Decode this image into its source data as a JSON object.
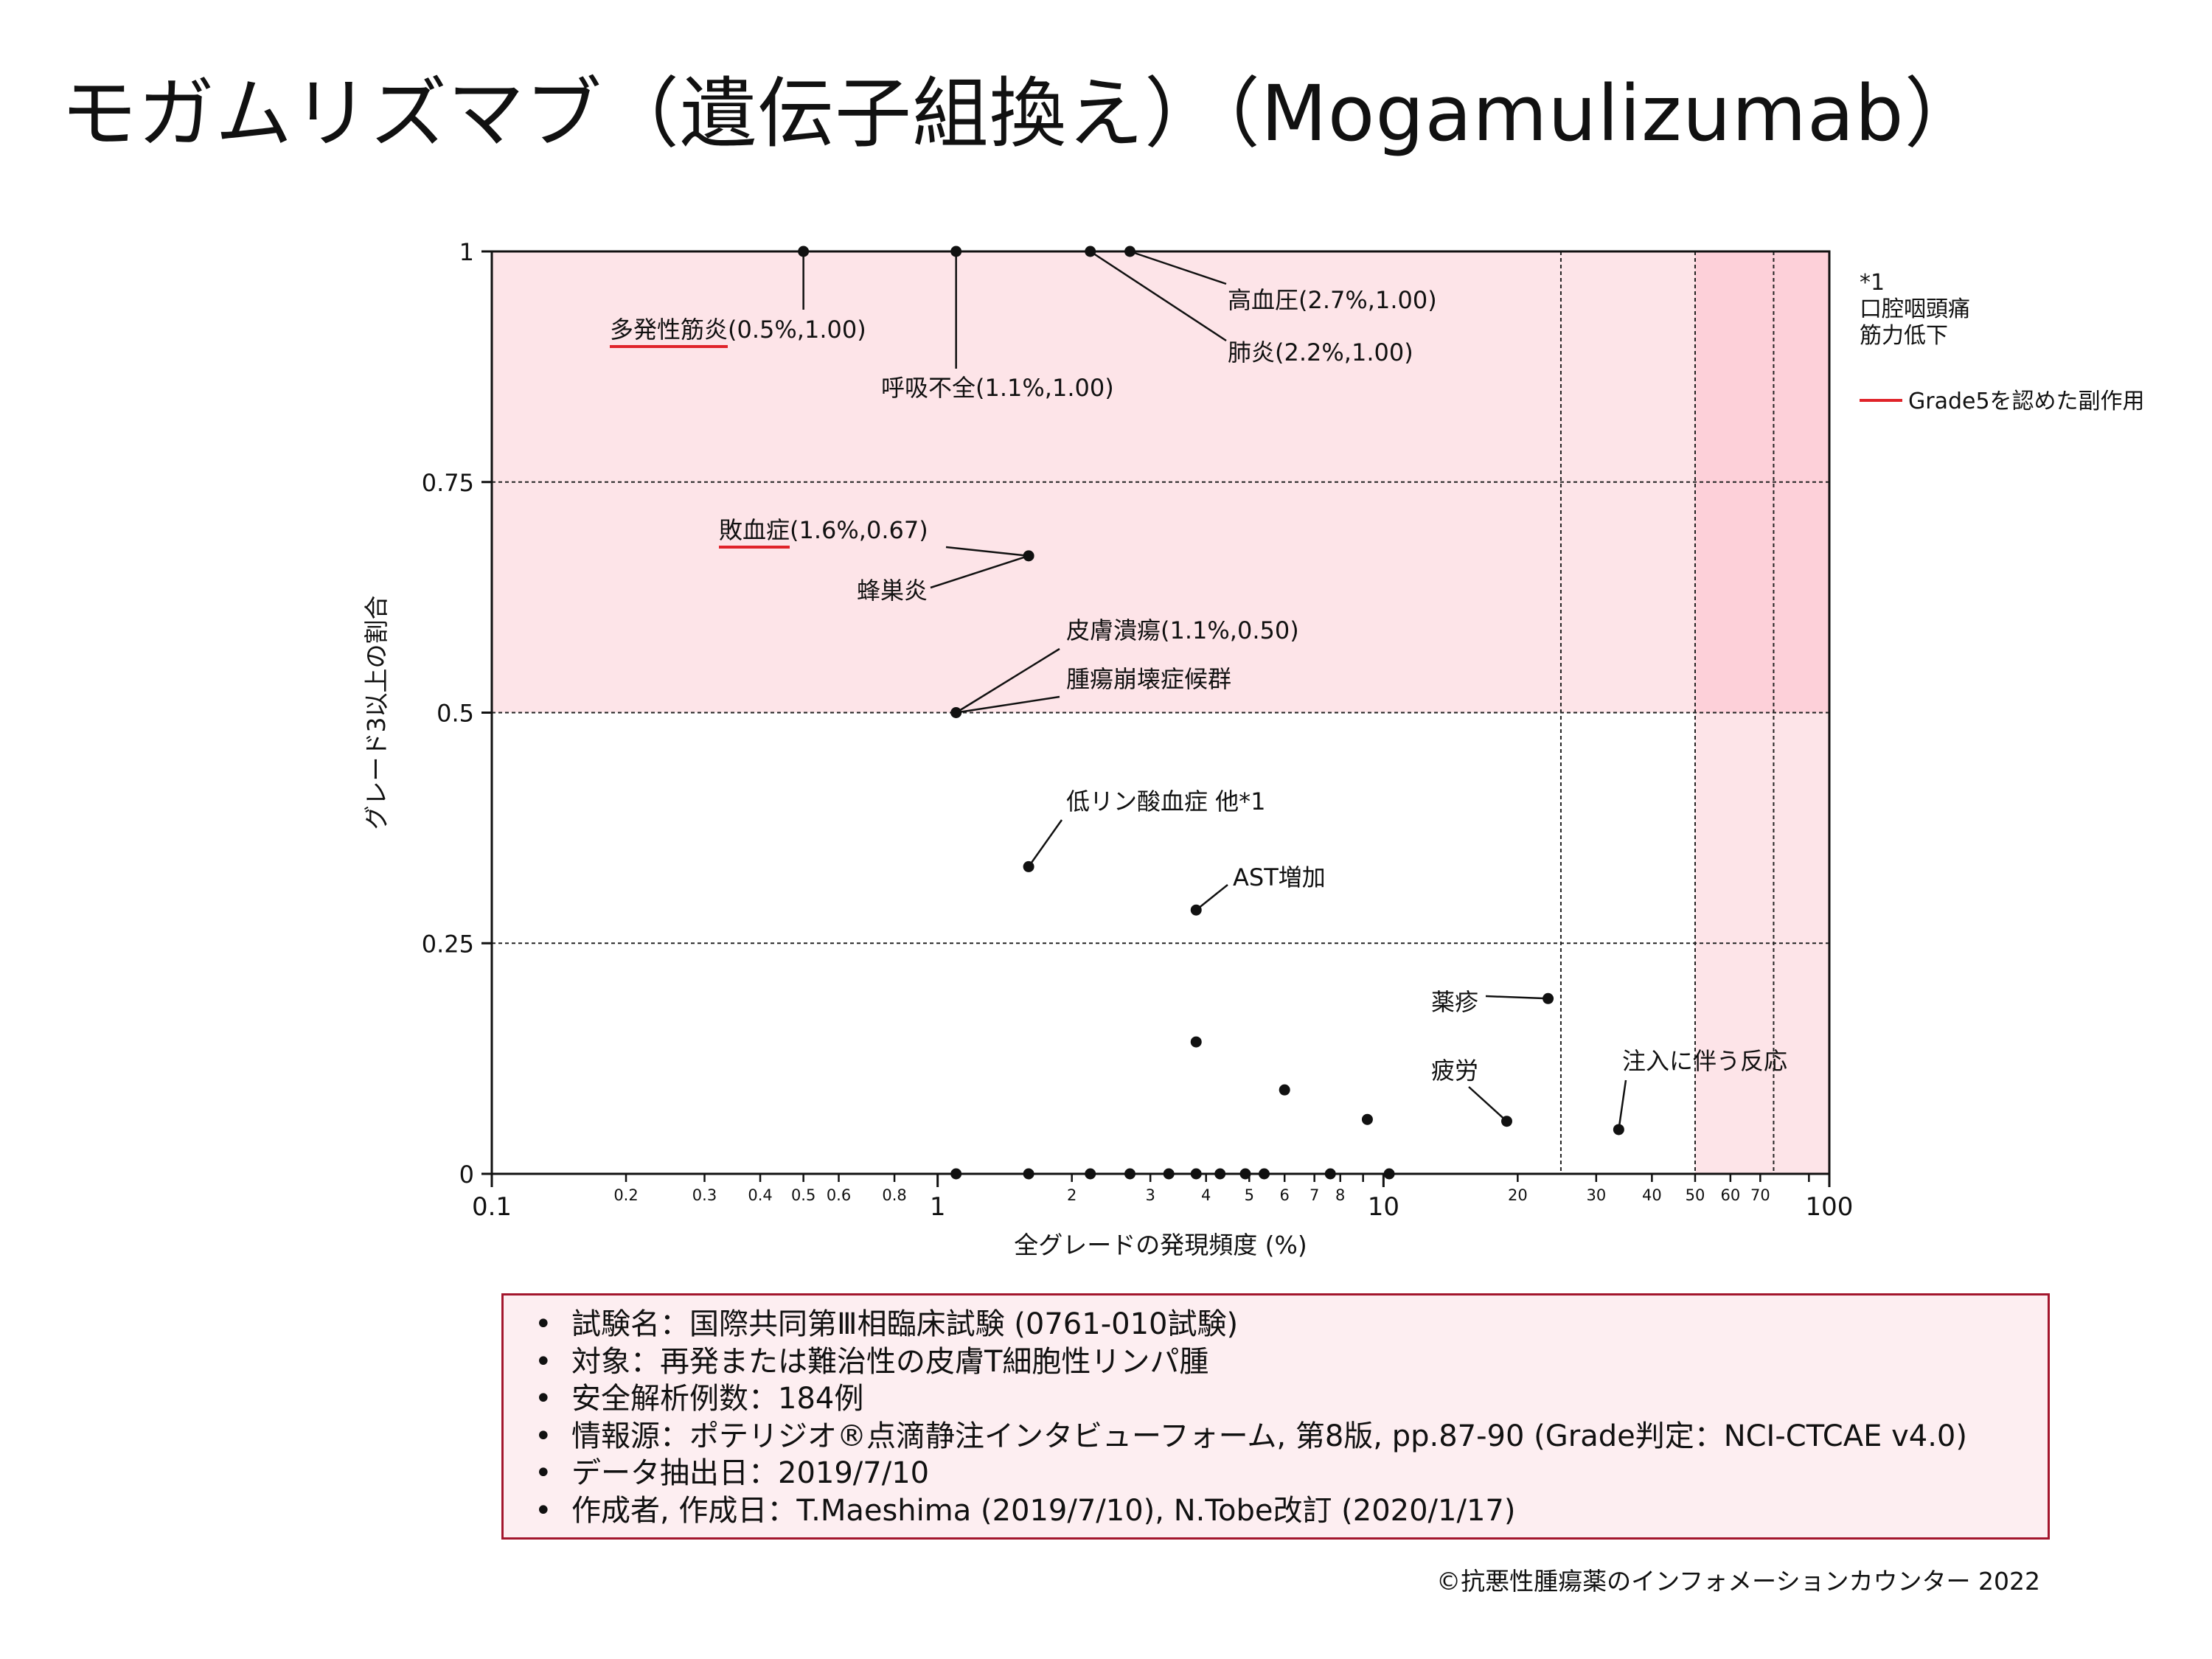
{
  "title": "モガムリズマブ（遺伝子組換え）（Mogamulizumab）",
  "chart_data": {
    "type": "scatter",
    "xscale": "log",
    "xlim": [
      0.1,
      100
    ],
    "ylim": [
      0,
      1
    ],
    "xlabel": "全グレードの発現頻度 (%)",
    "ylabel": "グレード3以上の割合",
    "ytick_labels": [
      "0",
      "0.25",
      "0.5",
      "0.75",
      "1"
    ],
    "xtick_major": [
      {
        "v": 0.1,
        "label": "0.1"
      },
      {
        "v": 1,
        "label": "1"
      },
      {
        "v": 10,
        "label": "10"
      },
      {
        "v": 100,
        "label": "100"
      }
    ],
    "xtick_minor": [
      {
        "v": 0.2,
        "label": "0.2"
      },
      {
        "v": 0.3,
        "label": "0.3"
      },
      {
        "v": 0.4,
        "label": "0.4"
      },
      {
        "v": 0.5,
        "label": "0.5"
      },
      {
        "v": 0.6,
        "label": "0.6"
      },
      {
        "v": 0.8,
        "label": "0.8"
      },
      {
        "v": 2,
        "label": "2"
      },
      {
        "v": 3,
        "label": "3"
      },
      {
        "v": 4,
        "label": "4"
      },
      {
        "v": 5,
        "label": "5"
      },
      {
        "v": 6,
        "label": "6"
      },
      {
        "v": 7,
        "label": "7"
      },
      {
        "v": 8,
        "label": "8"
      },
      {
        "v": 20,
        "label": "20"
      },
      {
        "v": 30,
        "label": "30"
      },
      {
        "v": 40,
        "label": "40"
      },
      {
        "v": 50,
        "label": "50"
      },
      {
        "v": 60,
        "label": "60"
      },
      {
        "v": 70,
        "label": "70"
      }
    ],
    "hgrid_values": [
      0.25,
      0.5,
      0.75
    ],
    "vlines": [
      25,
      50,
      75
    ],
    "points": [
      {
        "x": 0.5,
        "y": 1.0
      },
      {
        "x": 1.1,
        "y": 1.0
      },
      {
        "x": 2.2,
        "y": 1.0
      },
      {
        "x": 2.7,
        "y": 1.0
      },
      {
        "x": 1.6,
        "y": 0.67
      },
      {
        "x": 1.1,
        "y": 0.5
      },
      {
        "x": 1.6,
        "y": 0.333
      },
      {
        "x": 3.8,
        "y": 0.286
      },
      {
        "x": 23.4,
        "y": 0.19
      },
      {
        "x": 3.8,
        "y": 0.143
      },
      {
        "x": 6.0,
        "y": 0.091
      },
      {
        "x": 9.2,
        "y": 0.059
      },
      {
        "x": 18.9,
        "y": 0.057
      },
      {
        "x": 33.7,
        "y": 0.048
      },
      {
        "x": 1.1,
        "y": 0
      },
      {
        "x": 1.6,
        "y": 0
      },
      {
        "x": 2.2,
        "y": 0
      },
      {
        "x": 2.7,
        "y": 0
      },
      {
        "x": 3.3,
        "y": 0
      },
      {
        "x": 3.8,
        "y": 0
      },
      {
        "x": 4.3,
        "y": 0
      },
      {
        "x": 4.9,
        "y": 0
      },
      {
        "x": 5.4,
        "y": 0
      },
      {
        "x": 7.6,
        "y": 0
      },
      {
        "x": 10.3,
        "y": 0
      }
    ],
    "annotations": [
      {
        "text": "高血圧(2.7%,1.00)"
      },
      {
        "text": "多発性筋炎(0.5%,1.00)",
        "grade5": true,
        "grade5_text": "多発性筋炎"
      },
      {
        "text": "肺炎(2.2%,1.00)"
      },
      {
        "text": "呼吸不全(1.1%,1.00)"
      },
      {
        "text": "敗血症(1.6%,0.67)",
        "grade5": true,
        "grade5_text": "敗血症"
      },
      {
        "text": "蜂巣炎"
      },
      {
        "text": "皮膚潰瘍(1.1%,0.50)"
      },
      {
        "text": "腫瘍崩壊症候群"
      },
      {
        "text": "低リン酸血症 他*1"
      },
      {
        "text": "AST増加"
      },
      {
        "text": "薬疹"
      },
      {
        "text": "疲労"
      },
      {
        "text": "注入に伴う反応"
      }
    ],
    "legend": {
      "note_lines": [
        "*1",
        "口腔咽頭痛",
        "筋力低下"
      ],
      "grade5_label": "Grade5を認めた副作用",
      "grade5_color": "#e0232a"
    }
  },
  "colors": {
    "shade_light": "#fde4e8",
    "shade_dark": "#fdd0d9",
    "marker": "#111111",
    "box_border": "#a3162d",
    "box_fill": "#fdeef1"
  },
  "info": {
    "items": [
      "試験名：国際共同第Ⅲ相臨床試験 (0761-010試験)",
      "対象：再発または難治性の皮膚T細胞性リンパ腫",
      "安全解析例数：184例",
      "情報源：ポテリジオ®点滴静注インタビューフォーム, 第8版, pp.87-90 (Grade判定：NCI-CTCAE v4.0)",
      "データ抽出日：2019/7/10",
      "作成者, 作成日：T.Maeshima (2019/7/10), N.Tobe改訂 (2020/1/17)"
    ]
  },
  "copyright": "©抗悪性腫瘍薬のインフォメーションカウンター 2022"
}
